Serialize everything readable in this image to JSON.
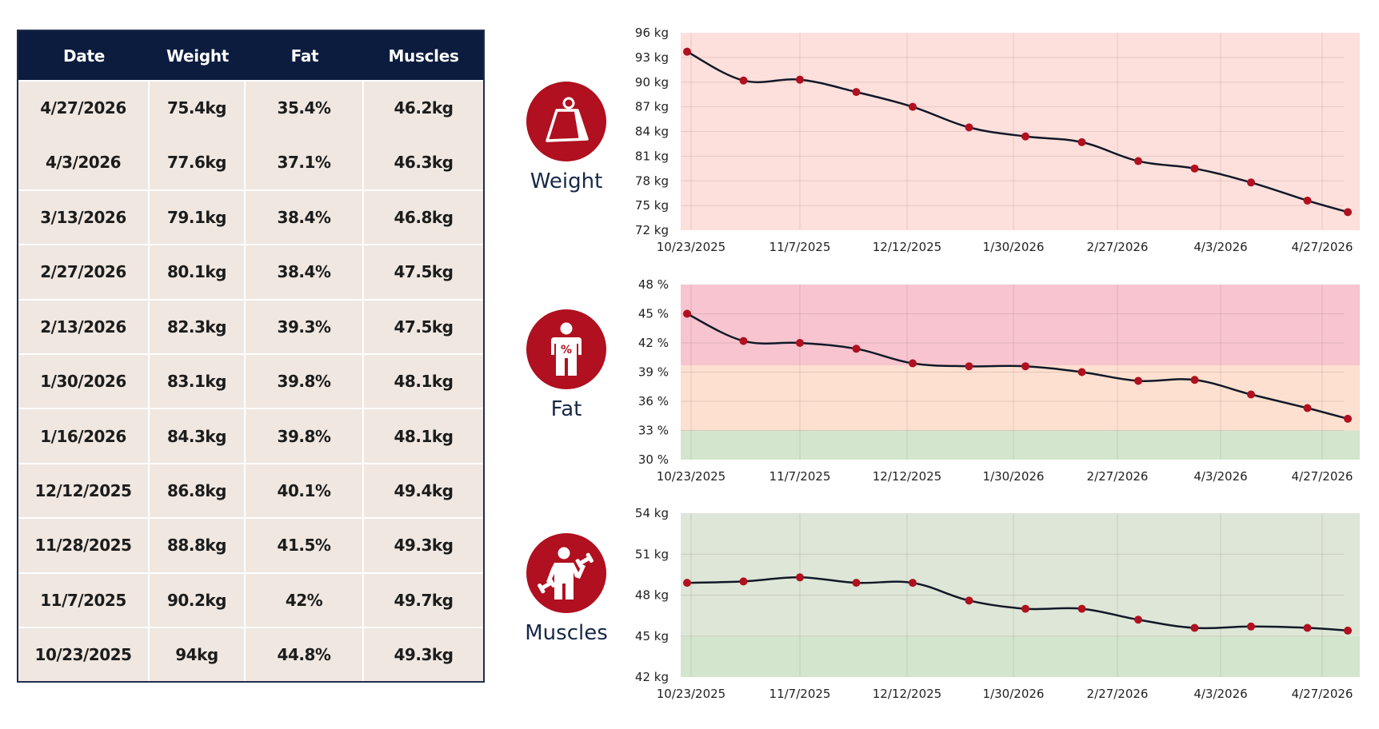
{
  "table": {
    "headers": [
      "Date",
      "Weight",
      "Fat",
      "Muscles"
    ],
    "rows": [
      [
        "4/27/2026",
        "75.4kg",
        "35.4%",
        "46.2kg"
      ],
      [
        "4/3/2026",
        "77.6kg",
        "37.1%",
        "46.3kg"
      ],
      [
        "3/13/2026",
        "79.1kg",
        "38.4%",
        "46.8kg"
      ],
      [
        "2/27/2026",
        "80.1kg",
        "38.4%",
        "47.5kg"
      ],
      [
        "2/13/2026",
        "82.3kg",
        "39.3%",
        "47.5kg"
      ],
      [
        "1/30/2026",
        "83.1kg",
        "39.8%",
        "48.1kg"
      ],
      [
        "1/16/2026",
        "84.3kg",
        "39.8%",
        "48.1kg"
      ],
      [
        "12/12/2025",
        "86.8kg",
        "40.1%",
        "49.4kg"
      ],
      [
        "11/28/2025",
        "88.8kg",
        "41.5%",
        "49.3kg"
      ],
      [
        "11/7/2025",
        "90.2kg",
        "42%",
        "49.7kg"
      ],
      [
        "10/23/2025",
        "94kg",
        "44.8%",
        "49.3kg"
      ]
    ]
  },
  "metrics": [
    {
      "label": "Weight",
      "icon": "kettlebell-weight-icon"
    },
    {
      "label": "Fat",
      "icon": "body-fat-percent-icon"
    },
    {
      "label": "Muscles",
      "icon": "person-dumbbell-icon"
    }
  ],
  "colors": {
    "header_bg": "#0c1c3e",
    "cell_bg": "#efe7e0",
    "icon_bg": "#b0101f",
    "line": "#111827",
    "marker": "#b0101f",
    "weight_bg": "#fde0dc",
    "fat_high": "#f7c4d0",
    "fat_mid": "#fde0d0",
    "fat_low": "#d3e6cd",
    "muscle_bg": "#dde6d7",
    "muscle_low": "#d3e6cd"
  },
  "chart_data": [
    {
      "type": "line",
      "title": "Weight",
      "unit": "kg",
      "ylim": [
        72,
        96
      ],
      "yticks": [
        72,
        75,
        78,
        81,
        84,
        87,
        90,
        93,
        96
      ],
      "ytick_labels": [
        "72 kg",
        "75 kg",
        "78 kg",
        "81 kg",
        "84 kg",
        "87 kg",
        "90 kg",
        "93 kg",
        "96 kg"
      ],
      "xtick_labels": [
        "10/23/2025",
        "11/7/2025",
        "12/12/2025",
        "1/30/2026",
        "2/27/2026",
        "4/3/2026",
        "4/27/2026"
      ],
      "grid": true,
      "bands": [
        {
          "from": 72,
          "to": 96,
          "color": "#fde0dc"
        }
      ],
      "values": [
        93.7,
        90.2,
        90.3,
        88.8,
        87.0,
        84.5,
        83.4,
        82.7,
        80.4,
        79.5,
        77.8,
        75.6,
        74.2
      ]
    },
    {
      "type": "line",
      "title": "Fat",
      "unit": "%",
      "ylim": [
        30,
        48
      ],
      "yticks": [
        30,
        33,
        36,
        39,
        42,
        45,
        48
      ],
      "ytick_labels": [
        "30 %",
        "33 %",
        "36 %",
        "39 %",
        "42 %",
        "45 %",
        "48 %"
      ],
      "xtick_labels": [
        "10/23/2025",
        "11/7/2025",
        "12/12/2025",
        "1/30/2026",
        "2/27/2026",
        "4/3/2026",
        "4/27/2026"
      ],
      "grid": true,
      "bands": [
        {
          "from": 39.7,
          "to": 48,
          "color": "#f7c4d0"
        },
        {
          "from": 33,
          "to": 39.7,
          "color": "#fde0d0"
        },
        {
          "from": 30,
          "to": 33,
          "color": "#d3e6cd"
        }
      ],
      "values": [
        45.0,
        42.2,
        42.0,
        41.4,
        39.9,
        39.6,
        39.6,
        39.0,
        38.1,
        38.2,
        36.7,
        35.3,
        34.2
      ]
    },
    {
      "type": "line",
      "title": "Muscles",
      "unit": "kg",
      "ylim": [
        42,
        54
      ],
      "yticks": [
        42,
        45,
        48,
        51,
        54
      ],
      "ytick_labels": [
        "42 kg",
        "45 kg",
        "48 kg",
        "51 kg",
        "54 kg"
      ],
      "xtick_labels": [
        "10/23/2025",
        "11/7/2025",
        "12/12/2025",
        "1/30/2026",
        "2/27/2026",
        "4/3/2026",
        "4/27/2026"
      ],
      "grid": true,
      "bands": [
        {
          "from": 45,
          "to": 54,
          "color": "#dde6d7"
        },
        {
          "from": 42,
          "to": 45,
          "color": "#d3e6cd"
        }
      ],
      "values": [
        48.9,
        49.0,
        49.3,
        48.9,
        48.9,
        47.6,
        47.0,
        47.0,
        46.2,
        45.6,
        45.7,
        45.6,
        45.4
      ]
    }
  ]
}
